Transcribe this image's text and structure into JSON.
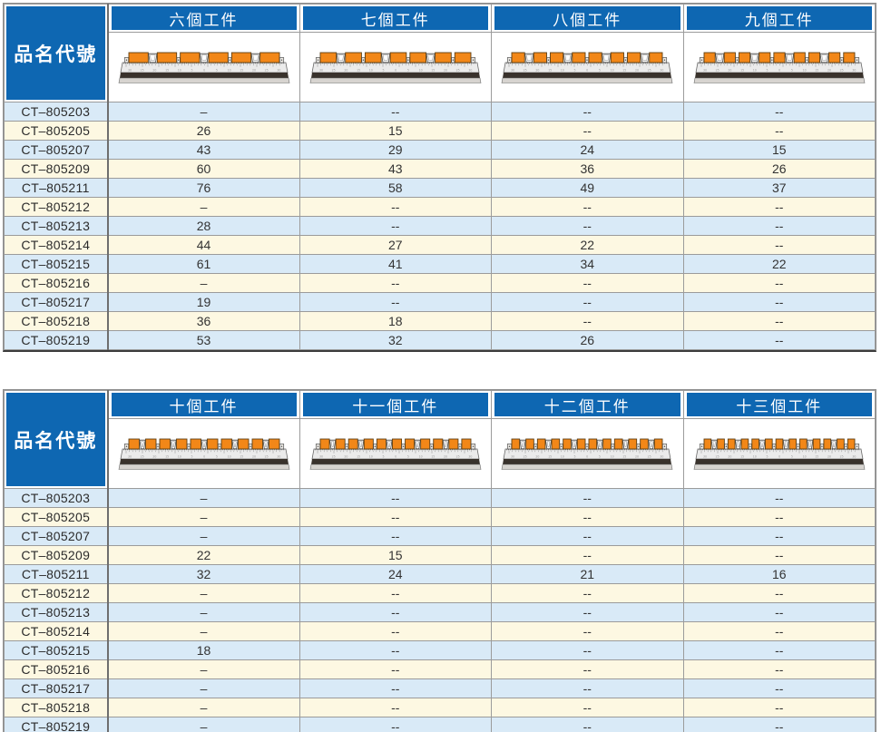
{
  "colors": {
    "header_blue": "#0e67b2",
    "row_blue": "#d9eaf7",
    "row_cream": "#fdf8e2",
    "workpiece_orange": "#f28718"
  },
  "corner_label": "品名代號",
  "tables": [
    {
      "name": "six-to-nine-workpieces",
      "columns": [
        {
          "label": "六個工件",
          "pieces": 6
        },
        {
          "label": "七個工件",
          "pieces": 7
        },
        {
          "label": "八個工件",
          "pieces": 8
        },
        {
          "label": "九個工件",
          "pieces": 9
        }
      ],
      "rows": [
        {
          "code": "CT–805203",
          "values": [
            "–",
            "--",
            "--",
            "--"
          ]
        },
        {
          "code": "CT–805205",
          "values": [
            "26",
            "15",
            "--",
            "--"
          ]
        },
        {
          "code": "CT–805207",
          "values": [
            "43",
            "29",
            "24",
            "15"
          ]
        },
        {
          "code": "CT–805209",
          "values": [
            "60",
            "43",
            "36",
            "26"
          ]
        },
        {
          "code": "CT–805211",
          "values": [
            "76",
            "58",
            "49",
            "37"
          ]
        },
        {
          "code": "CT–805212",
          "values": [
            "–",
            "--",
            "--",
            "--"
          ]
        },
        {
          "code": "CT–805213",
          "values": [
            "28",
            "--",
            "--",
            "--"
          ]
        },
        {
          "code": "CT–805214",
          "values": [
            "44",
            "27",
            "22",
            "--"
          ]
        },
        {
          "code": "CT–805215",
          "values": [
            "61",
            "41",
            "34",
            "22"
          ]
        },
        {
          "code": "CT–805216",
          "values": [
            "–",
            "--",
            "--",
            "--"
          ]
        },
        {
          "code": "CT–805217",
          "values": [
            "19",
            "--",
            "--",
            "--"
          ]
        },
        {
          "code": "CT–805218",
          "values": [
            "36",
            "18",
            "--",
            "--"
          ]
        },
        {
          "code": "CT–805219",
          "values": [
            "53",
            "32",
            "26",
            "--"
          ]
        }
      ]
    },
    {
      "name": "ten-to-thirteen-workpieces",
      "columns": [
        {
          "label": "十個工件",
          "pieces": 10
        },
        {
          "label": "十一個工件",
          "pieces": 11
        },
        {
          "label": "十二個工件",
          "pieces": 12
        },
        {
          "label": "十三個工件",
          "pieces": 13
        }
      ],
      "rows": [
        {
          "code": "CT–805203",
          "values": [
            "–",
            "--",
            "--",
            "--"
          ]
        },
        {
          "code": "CT–805205",
          "values": [
            "–",
            "--",
            "--",
            "--"
          ]
        },
        {
          "code": "CT–805207",
          "values": [
            "–",
            "--",
            "--",
            "--"
          ]
        },
        {
          "code": "CT–805209",
          "values": [
            "22",
            "15",
            "--",
            "--"
          ]
        },
        {
          "code": "CT–805211",
          "values": [
            "32",
            "24",
            "21",
            "16"
          ]
        },
        {
          "code": "CT–805212",
          "values": [
            "–",
            "--",
            "--",
            "--"
          ]
        },
        {
          "code": "CT–805213",
          "values": [
            "–",
            "--",
            "--",
            "--"
          ]
        },
        {
          "code": "CT–805214",
          "values": [
            "–",
            "--",
            "--",
            "--"
          ]
        },
        {
          "code": "CT–805215",
          "values": [
            "18",
            "--",
            "--",
            "--"
          ]
        },
        {
          "code": "CT–805216",
          "values": [
            "–",
            "--",
            "--",
            "--"
          ]
        },
        {
          "code": "CT–805217",
          "values": [
            "–",
            "--",
            "--",
            "--"
          ]
        },
        {
          "code": "CT–805218",
          "values": [
            "–",
            "--",
            "--",
            "--"
          ]
        },
        {
          "code": "CT–805219",
          "values": [
            "–",
            "--",
            "--",
            "--"
          ]
        }
      ]
    }
  ]
}
